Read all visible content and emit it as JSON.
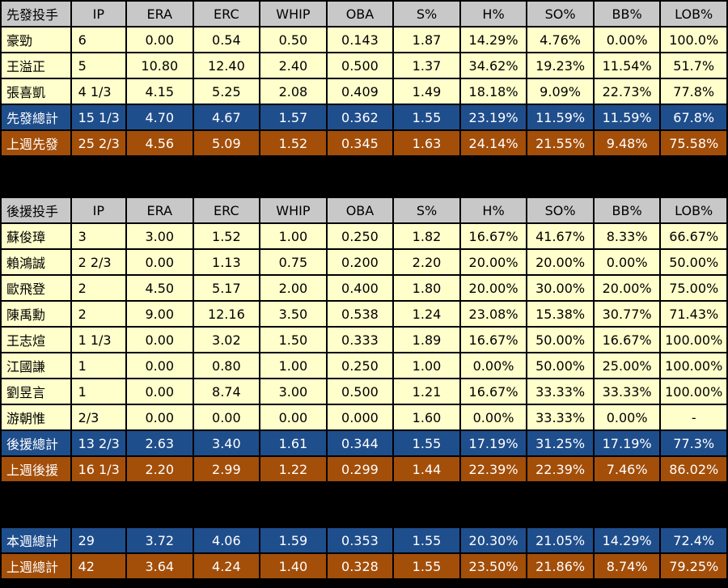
{
  "columns": [
    "IP",
    "ERA",
    "ERC",
    "WHIP",
    "OBA",
    "S%",
    "H%",
    "SO%",
    "BB%",
    "LOB%"
  ],
  "starters": {
    "header": "先發投手",
    "rows": [
      {
        "name": "豪勁",
        "IP": "6",
        "ERA": "0.00",
        "ERC": "0.54",
        "WHIP": "0.50",
        "OBA": "0.143",
        "S": "1.87",
        "H": "14.29%",
        "SO": "4.76%",
        "BB": "0.00%",
        "LOB": "100.0%"
      },
      {
        "name": "王溢正",
        "IP": "5",
        "ERA": "10.80",
        "ERC": "12.40",
        "WHIP": "2.40",
        "OBA": "0.500",
        "S": "1.37",
        "H": "34.62%",
        "SO": "19.23%",
        "BB": "11.54%",
        "LOB": "51.7%"
      },
      {
        "name": "張喜凱",
        "IP": "4 1/3",
        "ERA": "4.15",
        "ERC": "5.25",
        "WHIP": "2.08",
        "OBA": "0.409",
        "S": "1.49",
        "H": "18.18%",
        "SO": "9.09%",
        "BB": "22.73%",
        "LOB": "77.8%"
      }
    ],
    "total": {
      "name": "先發總計",
      "IP": "15 1/3",
      "ERA": "4.70",
      "ERC": "4.67",
      "WHIP": "1.57",
      "OBA": "0.362",
      "S": "1.55",
      "H": "23.19%",
      "SO": "11.59%",
      "BB": "11.59%",
      "LOB": "67.8%"
    },
    "last_week": {
      "name": "上週先發",
      "IP": "25 2/3",
      "ERA": "4.56",
      "ERC": "5.09",
      "WHIP": "1.52",
      "OBA": "0.345",
      "S": "1.63",
      "H": "24.14%",
      "SO": "21.55%",
      "BB": "9.48%",
      "LOB": "75.58%"
    }
  },
  "relievers": {
    "header": "後援投手",
    "rows": [
      {
        "name": "蘇俊璋",
        "IP": "3",
        "ERA": "3.00",
        "ERC": "1.52",
        "WHIP": "1.00",
        "OBA": "0.250",
        "S": "1.82",
        "H": "16.67%",
        "SO": "41.67%",
        "BB": "8.33%",
        "LOB": "66.67%"
      },
      {
        "name": "賴鴻誠",
        "IP": "2 2/3",
        "ERA": "0.00",
        "ERC": "1.13",
        "WHIP": "0.75",
        "OBA": "0.200",
        "S": "2.20",
        "H": "20.00%",
        "SO": "20.00%",
        "BB": "0.00%",
        "LOB": "50.00%"
      },
      {
        "name": "歐飛登",
        "IP": "2",
        "ERA": "4.50",
        "ERC": "5.17",
        "WHIP": "2.00",
        "OBA": "0.400",
        "S": "1.80",
        "H": "20.00%",
        "SO": "30.00%",
        "BB": "20.00%",
        "LOB": "75.00%"
      },
      {
        "name": "陳禹勳",
        "IP": "2",
        "ERA": "9.00",
        "ERC": "12.16",
        "WHIP": "3.50",
        "OBA": "0.538",
        "S": "1.24",
        "H": "23.08%",
        "SO": "15.38%",
        "BB": "30.77%",
        "LOB": "71.43%"
      },
      {
        "name": "王志煊",
        "IP": "1 1/3",
        "ERA": "0.00",
        "ERC": "3.02",
        "WHIP": "1.50",
        "OBA": "0.333",
        "S": "1.89",
        "H": "16.67%",
        "SO": "50.00%",
        "BB": "16.67%",
        "LOB": "100.00%"
      },
      {
        "name": "江國謙",
        "IP": "1",
        "ERA": "0.00",
        "ERC": "0.80",
        "WHIP": "1.00",
        "OBA": "0.250",
        "S": "1.00",
        "H": "0.00%",
        "SO": "50.00%",
        "BB": "25.00%",
        "LOB": "100.00%"
      },
      {
        "name": "劉昱言",
        "IP": "1",
        "ERA": "0.00",
        "ERC": "8.74",
        "WHIP": "3.00",
        "OBA": "0.500",
        "S": "1.21",
        "H": "16.67%",
        "SO": "33.33%",
        "BB": "33.33%",
        "LOB": "100.00%"
      },
      {
        "name": "游朝惟",
        "IP": "2/3",
        "ERA": "0.00",
        "ERC": "0.00",
        "WHIP": "0.00",
        "OBA": "0.000",
        "S": "1.60",
        "H": "0.00%",
        "SO": "33.33%",
        "BB": "0.00%",
        "LOB": "-"
      }
    ],
    "total": {
      "name": "後援總計",
      "IP": "13 2/3",
      "ERA": "2.63",
      "ERC": "3.40",
      "WHIP": "1.61",
      "OBA": "0.344",
      "S": "1.55",
      "H": "17.19%",
      "SO": "31.25%",
      "BB": "17.19%",
      "LOB": "77.3%"
    },
    "last_week": {
      "name": "上週後援",
      "IP": "16 1/3",
      "ERA": "2.20",
      "ERC": "2.99",
      "WHIP": "1.22",
      "OBA": "0.299",
      "S": "1.44",
      "H": "22.39%",
      "SO": "22.39%",
      "BB": "7.46%",
      "LOB": "86.02%"
    }
  },
  "summary": {
    "this_week": {
      "name": "本週總計",
      "IP": "29",
      "ERA": "3.72",
      "ERC": "4.06",
      "WHIP": "1.59",
      "OBA": "0.353",
      "S": "1.55",
      "H": "20.30%",
      "SO": "21.05%",
      "BB": "14.29%",
      "LOB": "72.4%"
    },
    "last_week": {
      "name": "上週總計",
      "IP": "42",
      "ERA": "3.64",
      "ERC": "4.24",
      "WHIP": "1.40",
      "OBA": "0.328",
      "S": "1.55",
      "H": "23.50%",
      "SO": "21.86%",
      "BB": "8.74%",
      "LOB": "79.25%"
    }
  },
  "colors": {
    "header": "#c8c8c8",
    "player_row": "#ffffcc",
    "total_row": "#1f4e8c",
    "last_week_row": "#a34e09",
    "background": "#000000"
  }
}
